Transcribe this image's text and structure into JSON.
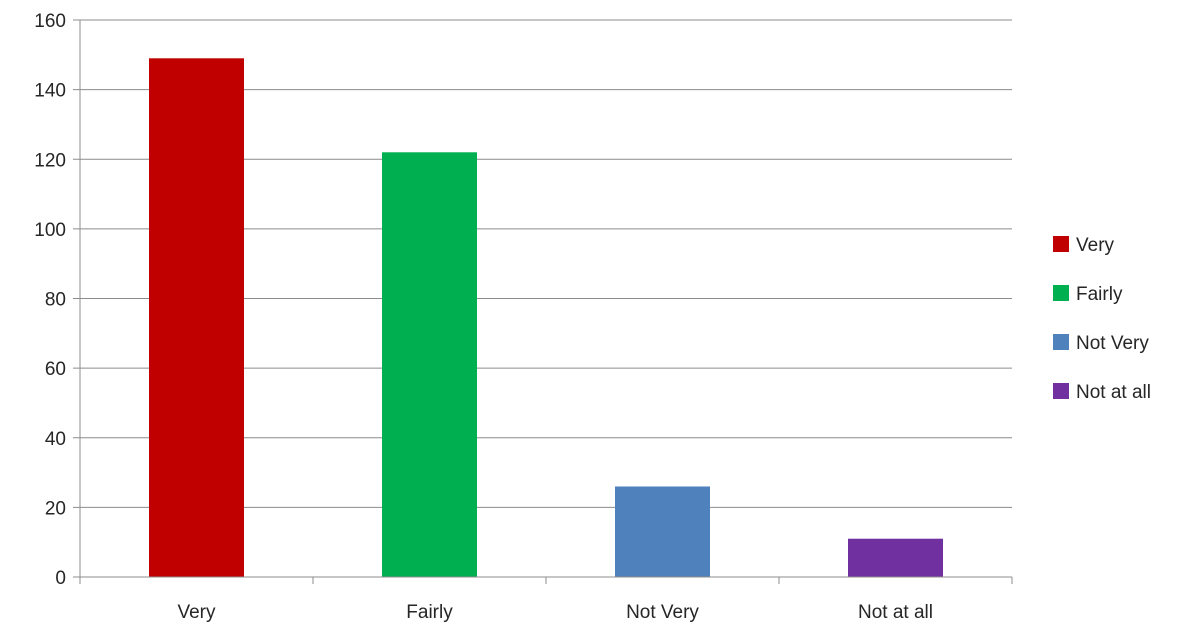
{
  "chart_data": {
    "type": "bar",
    "title": "",
    "xlabel": "",
    "ylabel": "",
    "categories": [
      "Very",
      "Fairly",
      "Not Very",
      "Not at all"
    ],
    "values": [
      149,
      122,
      26,
      11
    ],
    "colors": [
      "#C00000",
      "#00B050",
      "#4F81BD",
      "#7030A0"
    ],
    "ylim": [
      0,
      160
    ],
    "yticks": [
      0,
      20,
      40,
      60,
      80,
      100,
      120,
      140,
      160
    ],
    "ytick_labels": [
      "0",
      "20",
      "40",
      "60",
      "80",
      "100",
      "120",
      "140",
      "160"
    ],
    "grid": true,
    "legend": {
      "placement": "right",
      "entries": [
        "Very",
        "Fairly",
        "Not Very",
        "Not at all"
      ]
    }
  }
}
